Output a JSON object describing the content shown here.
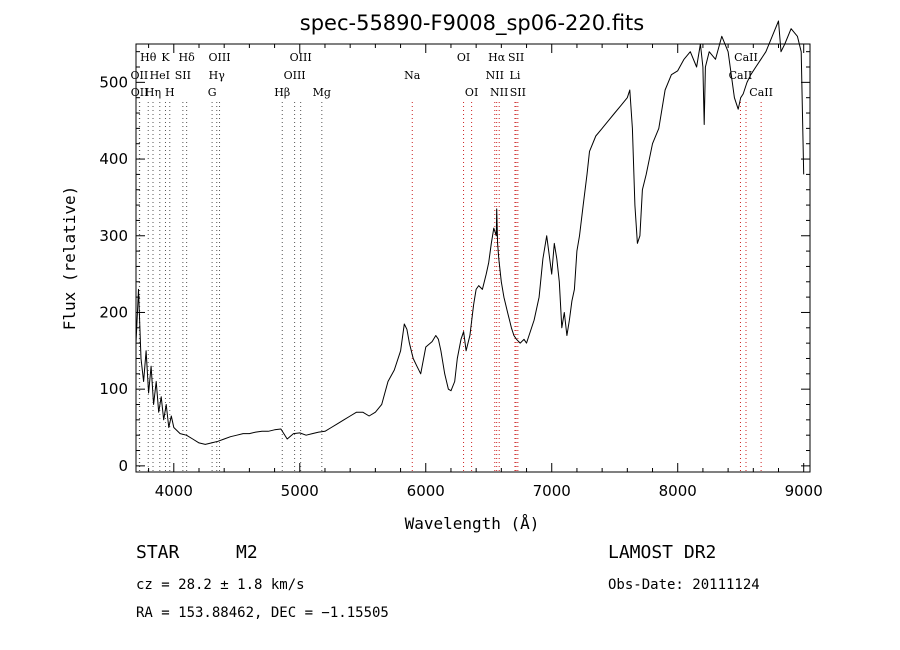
{
  "chart_data": {
    "type": "line",
    "title": "spec-55890-F9008_sp06-220.fits",
    "xlabel": "Wavelength (Å)",
    "ylabel": "Flux (relative)",
    "xlim": [
      3700,
      9050
    ],
    "ylim": [
      -8,
      550
    ],
    "xticks": [
      4000,
      5000,
      6000,
      7000,
      8000,
      9000
    ],
    "yticks": [
      0,
      100,
      200,
      300,
      400,
      500
    ],
    "grid": false,
    "series": [
      {
        "x": [
          3700,
          3720,
          3740,
          3760,
          3780,
          3800,
          3820,
          3840,
          3860,
          3880,
          3900,
          3920,
          3940,
          3960,
          3980,
          4000,
          4050,
          4100,
          4150,
          4200,
          4250,
          4300,
          4350,
          4400,
          4450,
          4500,
          4550,
          4600,
          4650,
          4700,
          4750,
          4800,
          4850,
          4900,
          4950,
          5000,
          5050,
          5100,
          5150,
          5200,
          5250,
          5300,
          5350,
          5400,
          5450,
          5500,
          5550,
          5600,
          5650,
          5700,
          5750,
          5800,
          5830,
          5850,
          5870,
          5900,
          5930,
          5960,
          6000,
          6050,
          6080,
          6100,
          6120,
          6150,
          6180,
          6200,
          6230,
          6250,
          6280,
          6300,
          6320,
          6350,
          6380,
          6400,
          6420,
          6450,
          6480,
          6500,
          6520,
          6540,
          6560,
          6563,
          6570,
          6580,
          6600,
          6620,
          6650,
          6680,
          6700,
          6720,
          6750,
          6780,
          6800,
          6830,
          6860,
          6900,
          6930,
          6960,
          7000,
          7020,
          7040,
          7060,
          7080,
          7100,
          7120,
          7140,
          7160,
          7180,
          7200,
          7220,
          7250,
          7280,
          7300,
          7350,
          7400,
          7450,
          7500,
          7550,
          7600,
          7620,
          7640,
          7660,
          7680,
          7700,
          7720,
          7750,
          7800,
          7850,
          7900,
          7950,
          8000,
          8050,
          8100,
          8150,
          8180,
          8200,
          8210,
          8220,
          8250,
          8300,
          8350,
          8400,
          8450,
          8480,
          8500,
          8520,
          8550,
          8580,
          8620,
          8660,
          8700,
          8750,
          8800,
          8820,
          8850,
          8900,
          8950,
          8980,
          9000
        ],
        "y": [
          160,
          230,
          140,
          110,
          150,
          95,
          130,
          80,
          110,
          70,
          90,
          60,
          80,
          50,
          65,
          50,
          42,
          40,
          35,
          30,
          28,
          30,
          32,
          35,
          38,
          40,
          42,
          42,
          44,
          45,
          45,
          47,
          48,
          35,
          42,
          43,
          40,
          42,
          44,
          45,
          50,
          55,
          60,
          65,
          70,
          70,
          65,
          70,
          80,
          110,
          125,
          150,
          185,
          178,
          160,
          140,
          130,
          120,
          155,
          162,
          170,
          165,
          150,
          120,
          100,
          98,
          110,
          140,
          165,
          175,
          150,
          170,
          210,
          230,
          235,
          230,
          250,
          265,
          290,
          310,
          300,
          335,
          290,
          270,
          240,
          220,
          200,
          180,
          170,
          165,
          160,
          165,
          160,
          175,
          190,
          220,
          270,
          300,
          250,
          290,
          270,
          240,
          180,
          200,
          170,
          190,
          215,
          230,
          280,
          300,
          340,
          380,
          410,
          430,
          440,
          450,
          460,
          470,
          480,
          490,
          440,
          340,
          290,
          300,
          360,
          380,
          420,
          440,
          490,
          510,
          515,
          530,
          540,
          520,
          550,
          520,
          445,
          520,
          540,
          530,
          560,
          540,
          480,
          465,
          480,
          485,
          500,
          510,
          520,
          530,
          540,
          560,
          580,
          540,
          550,
          570,
          560,
          540,
          380
        ]
      }
    ],
    "markers": [
      {
        "label": "Hθ",
        "x": 3797,
        "row": 0,
        "color": "#555555"
      },
      {
        "label": "K",
        "x": 3934,
        "row": 0,
        "color": "#555555"
      },
      {
        "label": "Hδ",
        "x": 4102,
        "row": 0,
        "color": "#555555"
      },
      {
        "label": "OIII",
        "x": 4363,
        "row": 0,
        "color": "#555555"
      },
      {
        "label": "OIII",
        "x": 5007,
        "row": 0,
        "color": "#555555"
      },
      {
        "label": "OI",
        "x": 6300,
        "row": 0,
        "color": "#cc2222"
      },
      {
        "label": "Hα",
        "x": 6563,
        "row": 0,
        "color": "#cc2222"
      },
      {
        "label": "SII",
        "x": 6717,
        "row": 0,
        "color": "#cc2222"
      },
      {
        "label": "CaII",
        "x": 8542,
        "row": 0,
        "color": "#cc2222"
      },
      {
        "label": "OII",
        "x": 3727,
        "row": 1,
        "color": "#555555"
      },
      {
        "label": "HeI",
        "x": 3889,
        "row": 1,
        "color": "#555555"
      },
      {
        "label": "SII",
        "x": 4072,
        "row": 1,
        "color": "#555555"
      },
      {
        "label": "Hγ",
        "x": 4341,
        "row": 1,
        "color": "#555555"
      },
      {
        "label": "OIII",
        "x": 4959,
        "row": 1,
        "color": "#555555"
      },
      {
        "label": "Na",
        "x": 5893,
        "row": 1,
        "color": "#cc2222"
      },
      {
        "label": "NII",
        "x": 6548,
        "row": 1,
        "color": "#cc2222"
      },
      {
        "label": "Li",
        "x": 6708,
        "row": 1,
        "color": "#cc2222"
      },
      {
        "label": "CaII",
        "x": 8498,
        "row": 1,
        "color": "#cc2222"
      },
      {
        "label": "OII",
        "x": 3729,
        "row": 2,
        "color": "#555555"
      },
      {
        "label": "Hη",
        "x": 3835,
        "row": 2,
        "color": "#555555"
      },
      {
        "label": "H",
        "x": 3968,
        "row": 2,
        "color": "#555555"
      },
      {
        "label": "G",
        "x": 4304,
        "row": 2,
        "color": "#555555"
      },
      {
        "label": "Hβ",
        "x": 4861,
        "row": 2,
        "color": "#555555"
      },
      {
        "label": "Mg",
        "x": 5175,
        "row": 2,
        "color": "#555555"
      },
      {
        "label": "OI",
        "x": 6364,
        "row": 2,
        "color": "#cc2222"
      },
      {
        "label": "NII",
        "x": 6583,
        "row": 2,
        "color": "#cc2222"
      },
      {
        "label": "SII",
        "x": 6731,
        "row": 2,
        "color": "#cc2222"
      },
      {
        "label": "CaII",
        "x": 8662,
        "row": 2,
        "color": "#cc2222"
      }
    ]
  },
  "info": {
    "class": "STAR",
    "subclass": "M2",
    "survey": "LAMOST DR2",
    "cz": "cz = 28.2 ± 1.8 km/s",
    "obs_date": "Obs-Date: 20111124",
    "coords": "RA = 153.88462, DEC =  −1.15505"
  }
}
